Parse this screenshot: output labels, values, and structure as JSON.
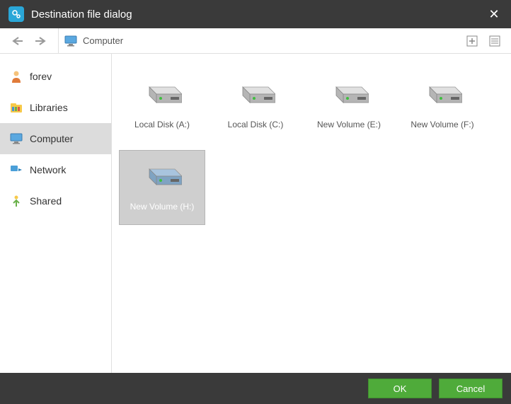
{
  "window": {
    "title": "Destination file dialog",
    "close_glyph": "✕"
  },
  "toolbar": {
    "address_label": "Computer"
  },
  "sidebar": {
    "items": [
      {
        "label": "forev",
        "icon": "user",
        "selected": false
      },
      {
        "label": "Libraries",
        "icon": "library",
        "selected": false
      },
      {
        "label": "Computer",
        "icon": "computer",
        "selected": true
      },
      {
        "label": "Network",
        "icon": "network",
        "selected": false
      },
      {
        "label": "Shared",
        "icon": "shared",
        "selected": false
      }
    ]
  },
  "drives": [
    {
      "label": "Local Disk (A:)",
      "selected": false,
      "tint": "gray"
    },
    {
      "label": "Local Disk (C:)",
      "selected": false,
      "tint": "gray"
    },
    {
      "label": "New Volume (E:)",
      "selected": false,
      "tint": "gray"
    },
    {
      "label": "New Volume (F:)",
      "selected": false,
      "tint": "gray"
    },
    {
      "label": "New Volume (H:)",
      "selected": true,
      "tint": "blue"
    }
  ],
  "footer": {
    "ok_label": "OK",
    "cancel_label": "Cancel"
  },
  "colors": {
    "titlebar_bg": "#3a3a3a",
    "accent": "#4fab3a",
    "selection_bg": "#cfcfcf",
    "sidebar_selected_bg": "#dcdcdc",
    "app_icon_bg": "#2aa7d8",
    "drive_blue_top": "#a8c4de",
    "drive_blue_side": "#7fa3c2",
    "drive_gray_top": "#e0e0e0",
    "drive_gray_side": "#b5b5b5",
    "drive_light": "#3fbf3f"
  }
}
